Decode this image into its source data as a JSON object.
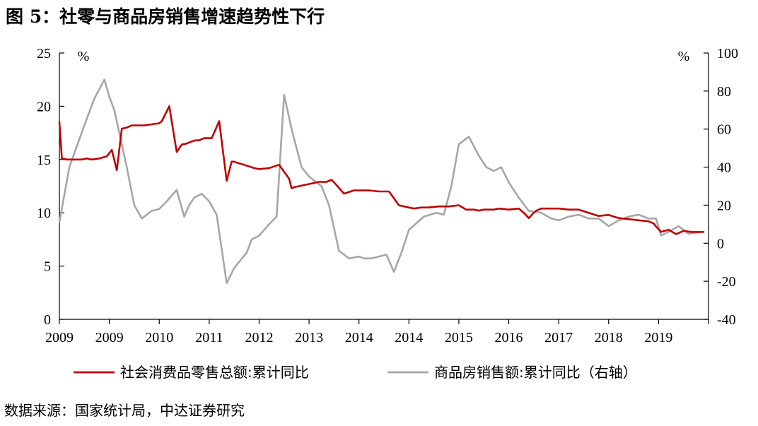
{
  "title": "图 5：社零与商品房销售增速趋势性下行",
  "source": "数据来源：国家统计局，中达证券研究",
  "chart_data": {
    "type": "line",
    "x_tick_labels": [
      "2009",
      "2009",
      "2010",
      "2011",
      "2012",
      "2013",
      "2014",
      "2014",
      "2015",
      "2016",
      "2017",
      "2018",
      "2019"
    ],
    "left_axis": {
      "unit": "%",
      "ylim": [
        0,
        25
      ],
      "ticks": [
        0,
        5,
        10,
        15,
        20,
        25
      ]
    },
    "right_axis": {
      "unit": "%",
      "ylim": [
        -40,
        100
      ],
      "ticks": [
        -40,
        -20,
        0,
        20,
        40,
        60,
        80,
        100
      ]
    },
    "grid": false,
    "legend_position": "bottom",
    "series": [
      {
        "name": "社会消费品零售总额:累计同比",
        "axis": "left",
        "color": "#c00000",
        "x": [
          0.0,
          0.05,
          0.15,
          0.3,
          0.45,
          0.55,
          0.65,
          0.8,
          0.95,
          1.05,
          1.15,
          1.25,
          1.35,
          1.4,
          1.45,
          1.55,
          1.7,
          1.85,
          2.0,
          2.05,
          2.2,
          2.35,
          2.45,
          2.55,
          2.6,
          2.65,
          2.72,
          2.8,
          2.9,
          3.0,
          3.05,
          3.2,
          3.35,
          3.45,
          3.5,
          3.55,
          3.7,
          3.9,
          4.0,
          4.2,
          4.4,
          4.6,
          4.65,
          4.7,
          4.8,
          5.0,
          5.2,
          5.35,
          5.45,
          5.55,
          5.7,
          5.9,
          6.1,
          6.2,
          6.4,
          6.6,
          6.8,
          7.0,
          7.1,
          7.25,
          7.4,
          7.6,
          7.8,
          8.0,
          8.15,
          8.3,
          8.4,
          8.5,
          8.6,
          8.7,
          8.8,
          9.0,
          9.2,
          9.3,
          9.4,
          9.5,
          9.55,
          9.65,
          9.8,
          10.0,
          10.2,
          10.4,
          10.6,
          10.8,
          11.0,
          11.2,
          11.4,
          11.6,
          11.8,
          11.9,
          11.95,
          12.05,
          12.2,
          12.35,
          12.5,
          12.65,
          12.8,
          12.9
        ],
        "values": [
          18.5,
          15.1,
          15.0,
          15.0,
          15.0,
          15.1,
          15.0,
          15.1,
          15.3,
          15.9,
          14.0,
          17.9,
          18.0,
          18.1,
          18.2,
          18.2,
          18.2,
          18.3,
          18.4,
          18.6,
          20.0,
          15.7,
          16.4,
          16.5,
          16.6,
          16.7,
          16.8,
          16.8,
          17.0,
          17.0,
          17.0,
          18.6,
          13.0,
          14.8,
          14.8,
          14.7,
          14.5,
          14.2,
          14.1,
          14.2,
          14.5,
          13.2,
          12.3,
          12.4,
          12.5,
          12.7,
          12.9,
          12.9,
          13.1,
          12.6,
          11.8,
          12.1,
          12.1,
          12.1,
          12.0,
          12.0,
          10.7,
          10.5,
          10.4,
          10.5,
          10.5,
          10.6,
          10.6,
          10.7,
          10.3,
          10.3,
          10.2,
          10.3,
          10.3,
          10.3,
          10.4,
          10.3,
          10.4,
          10.0,
          9.5,
          10.0,
          10.2,
          10.4,
          10.4,
          10.4,
          10.3,
          10.3,
          10.0,
          9.7,
          9.8,
          9.5,
          9.4,
          9.3,
          9.2,
          9.0,
          8.7,
          8.2,
          8.4,
          8.0,
          8.3,
          8.2,
          8.2,
          8.2
        ]
      },
      {
        "name": "商品房销售额:累计同比（右轴）",
        "axis": "right",
        "color": "#a6a6a6",
        "x": [
          0.0,
          0.2,
          0.5,
          0.7,
          0.9,
          1.0,
          1.1,
          1.2,
          1.35,
          1.5,
          1.65,
          1.85,
          2.0,
          2.15,
          2.35,
          2.5,
          2.6,
          2.7,
          2.85,
          3.0,
          3.15,
          3.35,
          3.5,
          3.75,
          3.85,
          4.0,
          4.2,
          4.35,
          4.5,
          4.65,
          4.75,
          4.85,
          5.0,
          5.1,
          5.25,
          5.4,
          5.6,
          5.8,
          6.0,
          6.1,
          6.25,
          6.4,
          6.55,
          6.7,
          6.85,
          7.0,
          7.3,
          7.55,
          7.7,
          7.85,
          8.0,
          8.2,
          8.4,
          8.55,
          8.7,
          8.85,
          9.0,
          9.2,
          9.4,
          9.65,
          9.85,
          10.0,
          10.2,
          10.4,
          10.6,
          10.8,
          11.0,
          11.2,
          11.4,
          11.6,
          11.8,
          11.95,
          12.05,
          12.2,
          12.4,
          12.6,
          12.9
        ],
        "values": [
          11,
          40,
          62,
          76,
          86,
          77,
          70,
          58,
          40,
          20,
          13,
          17,
          18,
          22,
          28,
          14,
          20,
          24,
          26,
          22,
          15,
          -21,
          -13,
          -5,
          2,
          4,
          10,
          14,
          78,
          60,
          50,
          40,
          35,
          33,
          30,
          20,
          -4,
          -8,
          -7,
          -8,
          -8,
          -7,
          -6,
          -15,
          -5,
          7,
          14,
          16,
          15,
          30,
          52,
          56,
          46,
          40,
          38,
          40,
          32,
          24,
          17,
          16,
          13,
          12,
          14,
          15,
          13,
          13,
          9,
          12,
          14,
          15,
          13,
          13,
          4,
          6,
          9,
          5,
          6
        ]
      }
    ]
  }
}
